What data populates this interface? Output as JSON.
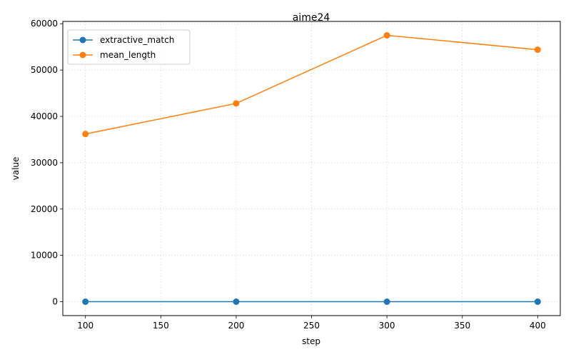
{
  "chart_data": {
    "type": "line",
    "title": "aime24",
    "xlabel": "step",
    "ylabel": "value",
    "x": [
      100,
      200,
      300,
      400
    ],
    "xlim": [
      85,
      415
    ],
    "ylim": [
      -3000,
      60500
    ],
    "xticks": [
      100,
      150,
      200,
      250,
      300,
      350,
      400
    ],
    "yticks": [
      0,
      10000,
      20000,
      30000,
      40000,
      50000,
      60000
    ],
    "grid": true,
    "legend_position": "top-left",
    "series": [
      {
        "name": "extractive_match",
        "values": [
          0.2,
          0.23,
          0.27,
          0.25
        ],
        "color": "#1f77b4"
      },
      {
        "name": "mean_length",
        "values": [
          36200,
          42800,
          57500,
          54400
        ],
        "color": "#ff7f0e"
      }
    ]
  }
}
